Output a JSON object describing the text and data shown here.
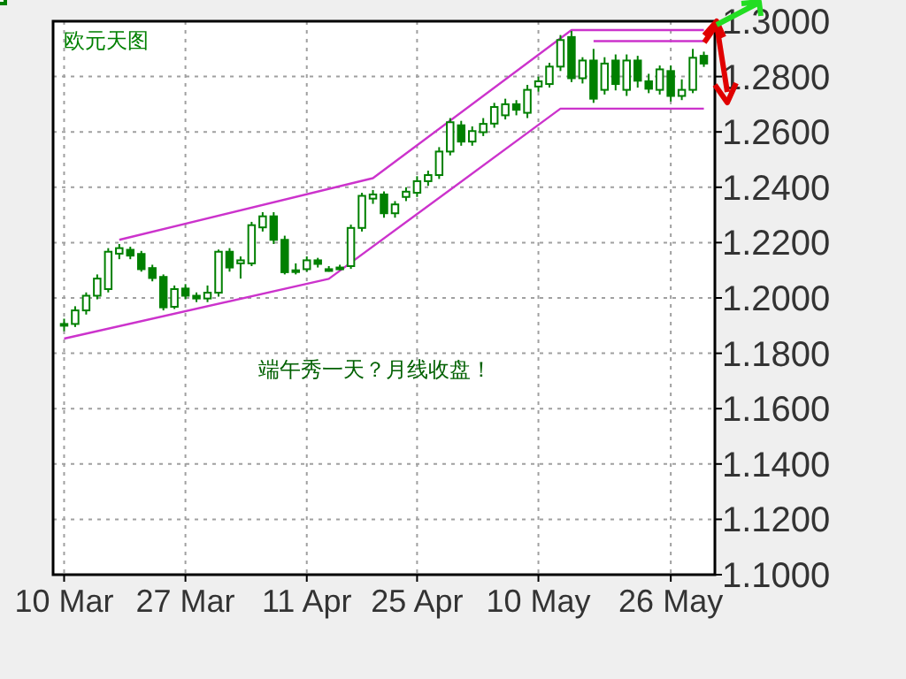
{
  "chart_data": {
    "type": "candlestick",
    "title": "欧元天图",
    "categories": [
      "10 Mar",
      null,
      null,
      null,
      null,
      null,
      null,
      null,
      null,
      null,
      null,
      "27 Mar",
      null,
      null,
      null,
      null,
      null,
      null,
      null,
      null,
      null,
      null,
      "11 Apr",
      null,
      null,
      null,
      null,
      null,
      null,
      null,
      null,
      null,
      "25 Apr",
      null,
      null,
      null,
      null,
      null,
      null,
      null,
      null,
      null,
      null,
      "10 May",
      null,
      null,
      null,
      null,
      null,
      null,
      null,
      null,
      null,
      null,
      null,
      "26 May",
      null,
      null,
      null
    ],
    "ohlc": [
      [
        1.1906,
        1.1925,
        1.188,
        1.1906
      ],
      [
        1.1906,
        1.197,
        1.1895,
        1.1955
      ],
      [
        1.1955,
        1.202,
        1.194,
        1.2008
      ],
      [
        1.2008,
        1.2085,
        1.1995,
        1.207
      ],
      [
        1.2032,
        1.218,
        1.202,
        1.2167
      ],
      [
        1.216,
        1.2195,
        1.214,
        1.218
      ],
      [
        1.2174,
        1.2185,
        1.214,
        1.2153
      ],
      [
        1.2159,
        1.217,
        1.2095,
        1.2104
      ],
      [
        1.2108,
        1.212,
        1.206,
        1.2072
      ],
      [
        1.2076,
        1.2085,
        1.1955,
        1.1966
      ],
      [
        1.1968,
        1.2045,
        1.196,
        1.2032
      ],
      [
        1.2034,
        1.205,
        1.1995,
        1.2008
      ],
      [
        1.2008,
        1.202,
        1.1985,
        1.1998
      ],
      [
        1.1998,
        1.2045,
        1.1985,
        1.2019
      ],
      [
        1.2019,
        1.2175,
        1.2005,
        1.2167
      ],
      [
        1.2167,
        1.218,
        1.2095,
        1.211
      ],
      [
        1.2125,
        1.215,
        1.207,
        1.2136
      ],
      [
        1.2125,
        1.2275,
        1.2115,
        1.2263
      ],
      [
        1.2255,
        1.231,
        1.224,
        1.2295
      ],
      [
        1.2295,
        1.231,
        1.2195,
        1.221
      ],
      [
        1.221,
        1.2225,
        1.2085,
        1.2093
      ],
      [
        1.21,
        1.2125,
        1.2085,
        1.21
      ],
      [
        1.2104,
        1.215,
        1.2095,
        1.2136
      ],
      [
        1.2136,
        1.2145,
        1.211,
        1.2123
      ],
      [
        1.2104,
        1.2115,
        1.2095,
        1.2104
      ],
      [
        1.211,
        1.212,
        1.21,
        1.211
      ],
      [
        1.2115,
        1.2265,
        1.2105,
        1.2253
      ],
      [
        1.2253,
        1.238,
        1.224,
        1.2369
      ],
      [
        1.2359,
        1.239,
        1.234,
        1.2374
      ],
      [
        1.2374,
        1.2385,
        1.229,
        1.2306
      ],
      [
        1.2306,
        1.235,
        1.229,
        1.2338
      ],
      [
        1.2365,
        1.24,
        1.235,
        1.2384
      ],
      [
        1.238,
        1.244,
        1.2365,
        1.2422
      ],
      [
        1.2422,
        1.246,
        1.2405,
        1.2444
      ],
      [
        1.2444,
        1.2545,
        1.243,
        1.2529
      ],
      [
        1.2529,
        1.265,
        1.2515,
        1.2635
      ],
      [
        1.2624,
        1.264,
        1.255,
        1.2565
      ],
      [
        1.2565,
        1.262,
        1.255,
        1.2603
      ],
      [
        1.2599,
        1.265,
        1.2585,
        1.2629
      ],
      [
        1.263,
        1.2705,
        1.2615,
        1.269
      ],
      [
        1.266,
        1.272,
        1.2645,
        1.27
      ],
      [
        1.27,
        1.2715,
        1.266,
        1.268
      ],
      [
        1.2669,
        1.277,
        1.265,
        1.2752
      ],
      [
        1.2764,
        1.28,
        1.2745,
        1.2783
      ],
      [
        1.2773,
        1.285,
        1.276,
        1.2836
      ],
      [
        1.2836,
        1.295,
        1.282,
        1.2932
      ],
      [
        1.2943,
        1.2965,
        1.278,
        1.2794
      ],
      [
        1.2794,
        1.287,
        1.2775,
        1.2858
      ],
      [
        1.2858,
        1.29,
        1.2705,
        1.272
      ],
      [
        1.2752,
        1.287,
        1.2735,
        1.2847
      ],
      [
        1.2858,
        1.288,
        1.275,
        1.2773
      ],
      [
        1.2752,
        1.288,
        1.273,
        1.2858
      ],
      [
        1.2858,
        1.2875,
        1.276,
        1.2785
      ],
      [
        1.2783,
        1.281,
        1.274,
        1.2756
      ],
      [
        1.2752,
        1.284,
        1.2735,
        1.2826
      ],
      [
        1.282,
        1.284,
        1.271,
        1.273
      ],
      [
        1.273,
        1.279,
        1.2715,
        1.2752
      ],
      [
        1.2752,
        1.29,
        1.274,
        1.2868
      ],
      [
        1.2875,
        1.289,
        1.2835,
        1.2847
      ]
    ],
    "color": "#008000",
    "series": [
      {
        "type": "line",
        "color": "#cc33cc",
        "values": [
          1.1853,
          null,
          null,
          null,
          null,
          null,
          null,
          null,
          null,
          null,
          null,
          null,
          null,
          null,
          null,
          null,
          null,
          null,
          null,
          null,
          null,
          null,
          null,
          null,
          1.2069,
          null,
          null,
          null,
          null,
          null,
          null,
          null,
          null,
          null,
          null,
          null,
          null,
          null,
          null,
          null,
          null,
          null,
          null,
          null,
          null,
          1.2684,
          null,
          null,
          null,
          null,
          null,
          null,
          null,
          null,
          null,
          null,
          null,
          null,
          1.2684
        ]
      },
      {
        "type": "line",
        "color": "#cc33cc",
        "values": [
          null,
          null,
          null,
          null,
          null,
          1.221,
          null,
          null,
          null,
          null,
          null,
          null,
          null,
          null,
          null,
          null,
          null,
          null,
          null,
          null,
          null,
          null,
          null,
          null,
          null,
          null,
          null,
          null,
          1.2433,
          null,
          null,
          null,
          null,
          null,
          null,
          null,
          null,
          null,
          null,
          null,
          null,
          null,
          null,
          null,
          null,
          null,
          1.2968,
          null,
          null,
          null,
          null,
          null,
          null,
          null,
          null,
          null,
          null,
          null,
          1.2968
        ]
      },
      {
        "type": "line",
        "color": "#cc33cc",
        "values": [
          null,
          null,
          null,
          null,
          null,
          null,
          null,
          null,
          null,
          null,
          null,
          null,
          null,
          null,
          null,
          null,
          null,
          null,
          null,
          null,
          null,
          null,
          null,
          null,
          null,
          null,
          null,
          null,
          null,
          null,
          null,
          null,
          null,
          null,
          null,
          null,
          null,
          null,
          null,
          null,
          null,
          null,
          null,
          null,
          null,
          null,
          null,
          null,
          1.2928,
          null,
          null,
          null,
          null,
          null,
          null,
          null,
          null,
          null,
          1.2928
        ]
      }
    ],
    "ylim": [
      1.1,
      1.3
    ],
    "yticks": [
      {
        "value": 1.1,
        "label": "1.1000"
      },
      {
        "value": 1.12,
        "label": "1.1200"
      },
      {
        "value": 1.14,
        "label": "1.1400"
      },
      {
        "value": 1.16,
        "label": "1.1600"
      },
      {
        "value": 1.18,
        "label": "1.1800"
      },
      {
        "value": 1.2,
        "label": "1.2000"
      },
      {
        "value": 1.22,
        "label": "1.2200"
      },
      {
        "value": 1.24,
        "label": "1.2400"
      },
      {
        "value": 1.26,
        "label": "1.2600"
      },
      {
        "value": 1.28,
        "label": "1.2800"
      },
      {
        "value": 1.3,
        "label": "1.3000"
      }
    ],
    "grid": true,
    "annotations": [
      "端午秀一天？月线收盘！"
    ]
  }
}
